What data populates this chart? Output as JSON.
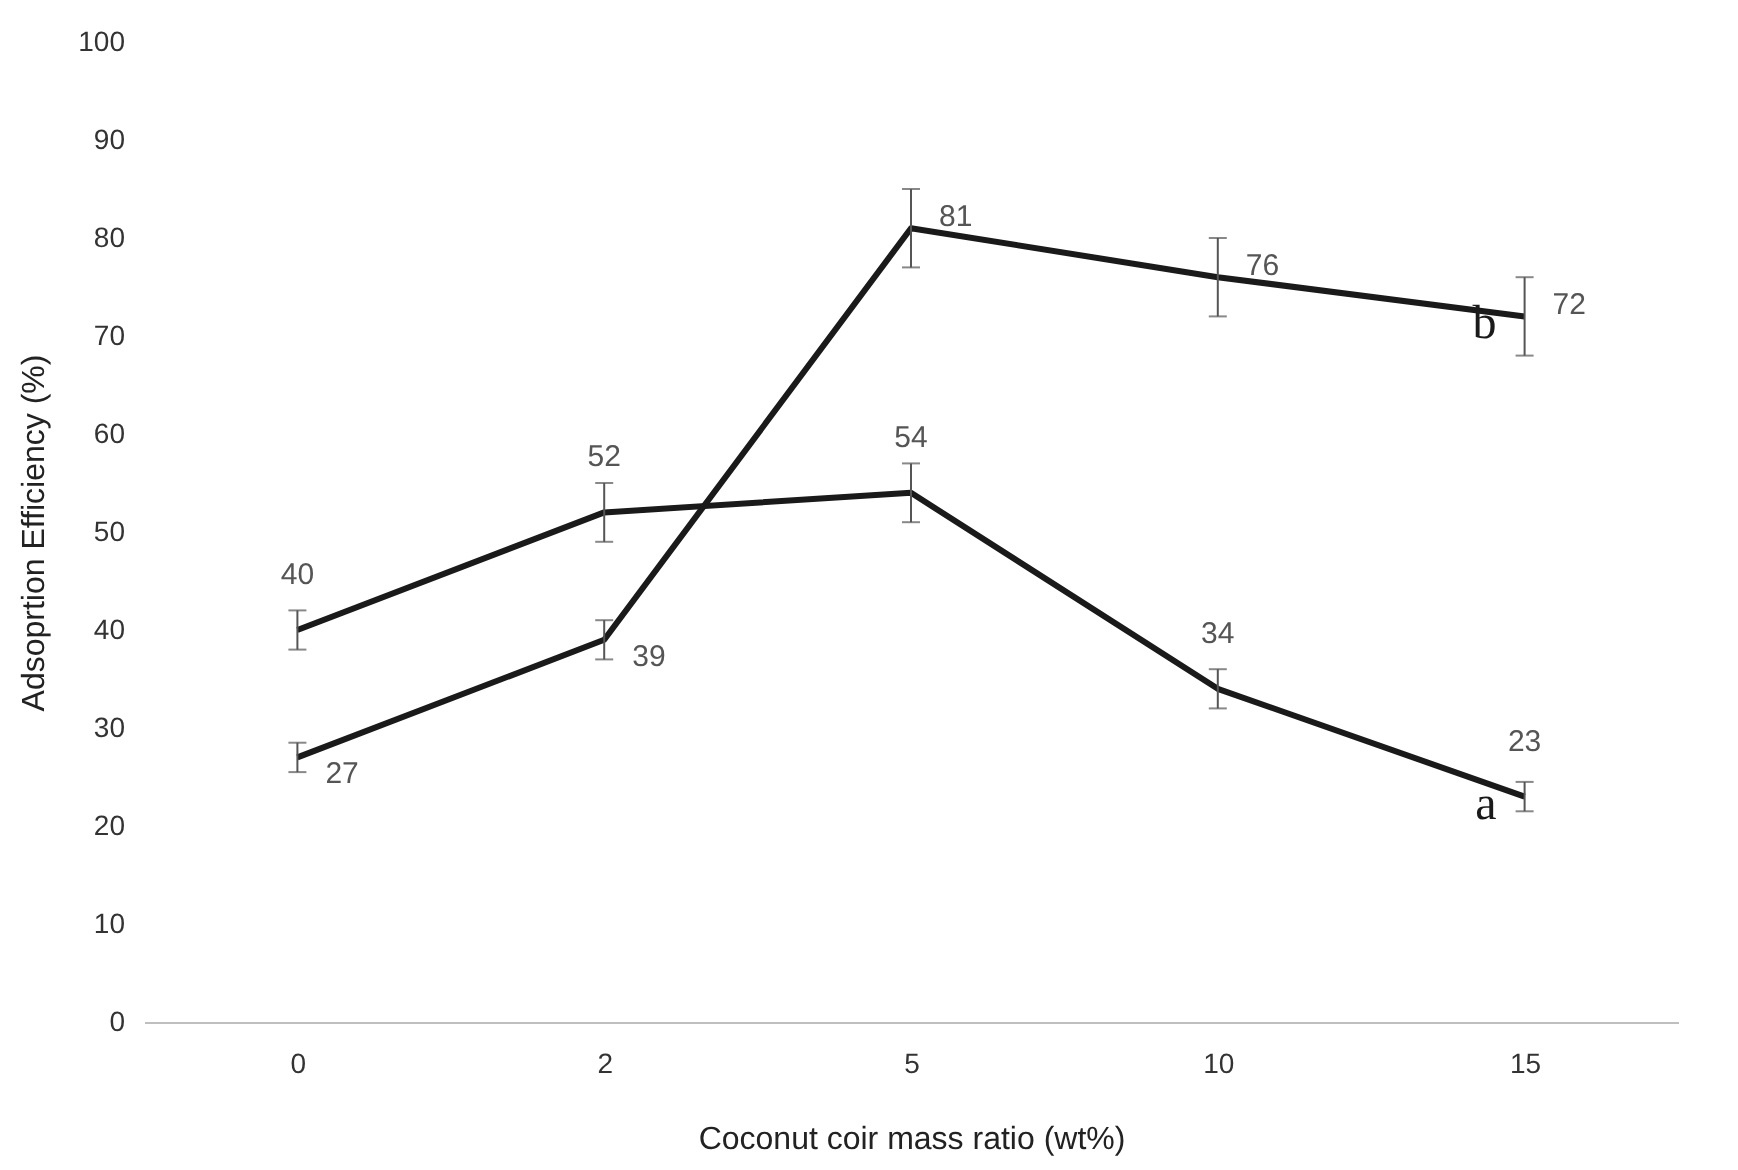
{
  "chart_data": {
    "type": "line",
    "xlabel": "Coconut coir mass ratio (wt%)",
    "ylabel": "Adsoprtion Efficiency (%)",
    "categories": [
      "0",
      "2",
      "5",
      "10",
      "15"
    ],
    "series": [
      {
        "name": "a",
        "color": "#1a1a1a",
        "values": [
          40,
          52,
          54,
          34,
          23
        ],
        "errors": [
          2,
          3,
          3,
          2,
          1.5
        ]
      },
      {
        "name": "b",
        "color": "#1a1a1a",
        "values": [
          27,
          39,
          81,
          76,
          72
        ],
        "errors": [
          1.5,
          2,
          4,
          4,
          4
        ]
      }
    ],
    "ylim": [
      0,
      100
    ],
    "yticks": [
      0,
      10,
      20,
      30,
      40,
      50,
      60,
      70,
      80,
      90,
      100
    ],
    "grid": false,
    "data_labels": true,
    "marker": "none",
    "line_style": "solid"
  }
}
